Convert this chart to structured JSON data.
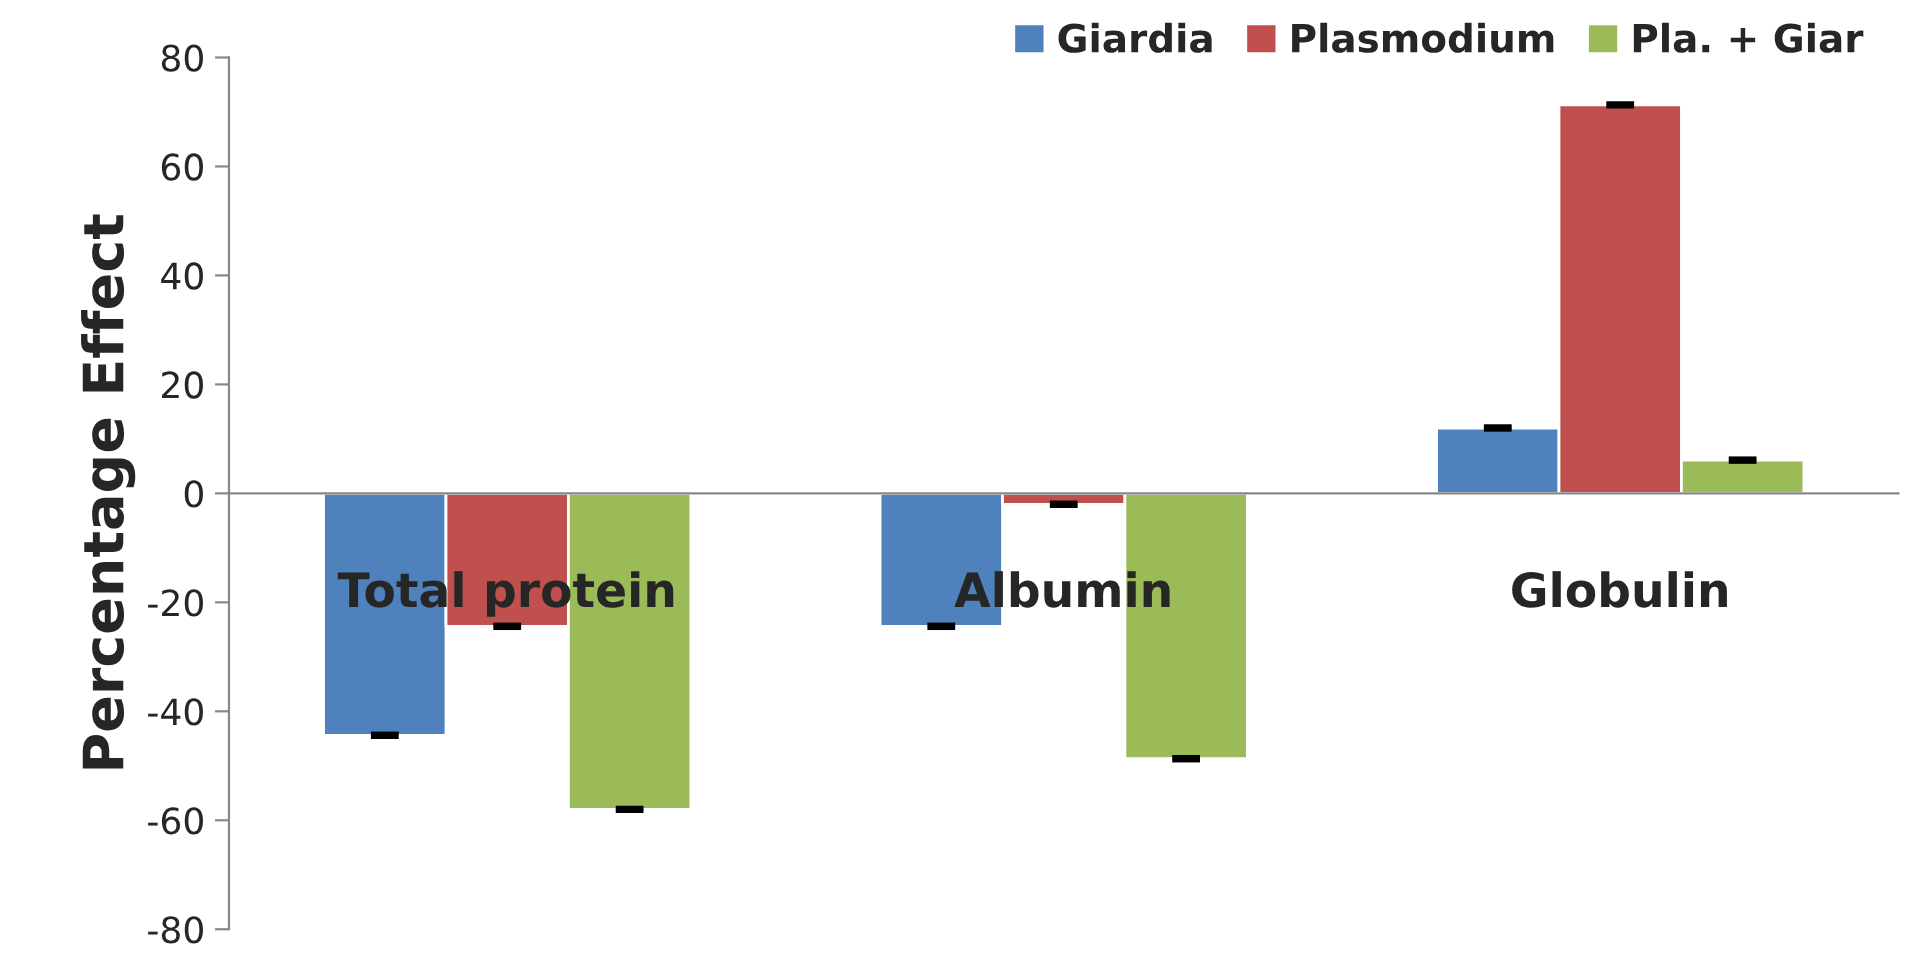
{
  "chart_data": {
    "type": "bar",
    "ylabel": "Percentage Effect",
    "categories": [
      "Total protein",
      "Albumin",
      "Globulin"
    ],
    "series": [
      {
        "name": "Giardia",
        "color": "#4f81bd",
        "values": [
          -44.4,
          -24.4,
          12
        ],
        "errors": [
          0.3,
          0.3,
          0.3
        ]
      },
      {
        "name": "Plasmodium",
        "color": "#c0504d",
        "values": [
          -24.4,
          -2,
          71.3
        ],
        "errors": [
          0.3,
          0.3,
          0.3
        ]
      },
      {
        "name": "Pla. + Giar",
        "color": "#9bbb59",
        "values": [
          -58,
          -48.7,
          6.1
        ],
        "errors": [
          0.3,
          0.3,
          0.3
        ]
      }
    ],
    "ylim": [
      -80,
      80
    ],
    "yticks": [
      -80,
      -60,
      -40,
      -20,
      0,
      20,
      40,
      60,
      80
    ],
    "legend": "top right"
  }
}
